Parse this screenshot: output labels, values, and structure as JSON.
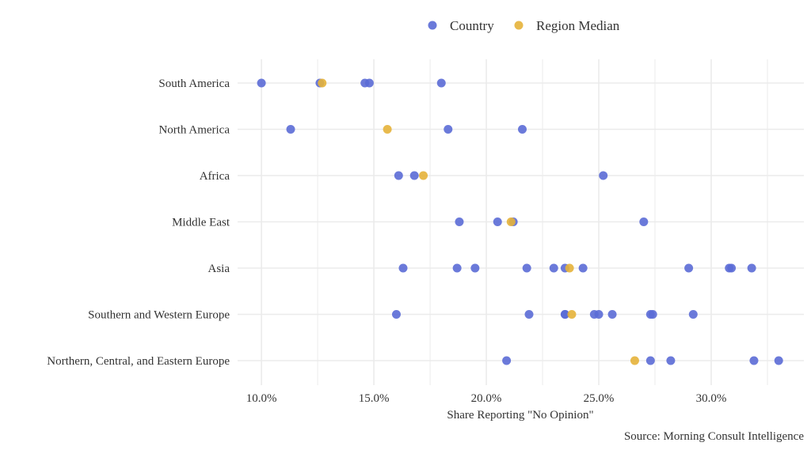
{
  "chart_data": {
    "type": "scatter",
    "title": "",
    "xlabel": "Share Reporting \"No Opinion\"",
    "ylabel": "",
    "caption": "Source: Morning Consult Intelligence",
    "xlim": [
      8.94,
      34.12
    ],
    "x_ticks": [
      10,
      15,
      20,
      25,
      30
    ],
    "x_tick_labels": [
      "10.0%",
      "15.0%",
      "20.0%",
      "25.0%",
      "30.0%"
    ],
    "legend": {
      "placement": "top",
      "entries": [
        {
          "name": "Country",
          "color": "#5b6bd6"
        },
        {
          "name": "Region Median",
          "color": "#e6b33a"
        }
      ]
    },
    "categories": [
      "South America",
      "North America",
      "Africa",
      "Middle East",
      "Asia",
      "Southern and Western Europe",
      "Northern, Central, and Eastern Europe"
    ],
    "series": [
      {
        "name": "Country",
        "color": "#5b6bd6",
        "values": [
          [
            10.0,
            12.6,
            14.6,
            14.8,
            18.0
          ],
          [
            11.3,
            18.3,
            21.6
          ],
          [
            16.1,
            16.8,
            25.2
          ],
          [
            18.8,
            20.5,
            21.2,
            27.0
          ],
          [
            16.3,
            18.7,
            19.5,
            21.8,
            23.0,
            23.5,
            24.3,
            29.0,
            30.8,
            30.9,
            31.8
          ],
          [
            16.0,
            21.9,
            23.5,
            23.5,
            24.8,
            25.0,
            25.6,
            27.3,
            27.4,
            29.2
          ],
          [
            20.9,
            27.3,
            28.2,
            31.9,
            33.0
          ]
        ]
      },
      {
        "name": "Region Median",
        "color": "#e6b33a",
        "values": [
          12.7,
          15.6,
          17.2,
          21.1,
          23.7,
          23.8,
          26.6
        ]
      }
    ]
  }
}
